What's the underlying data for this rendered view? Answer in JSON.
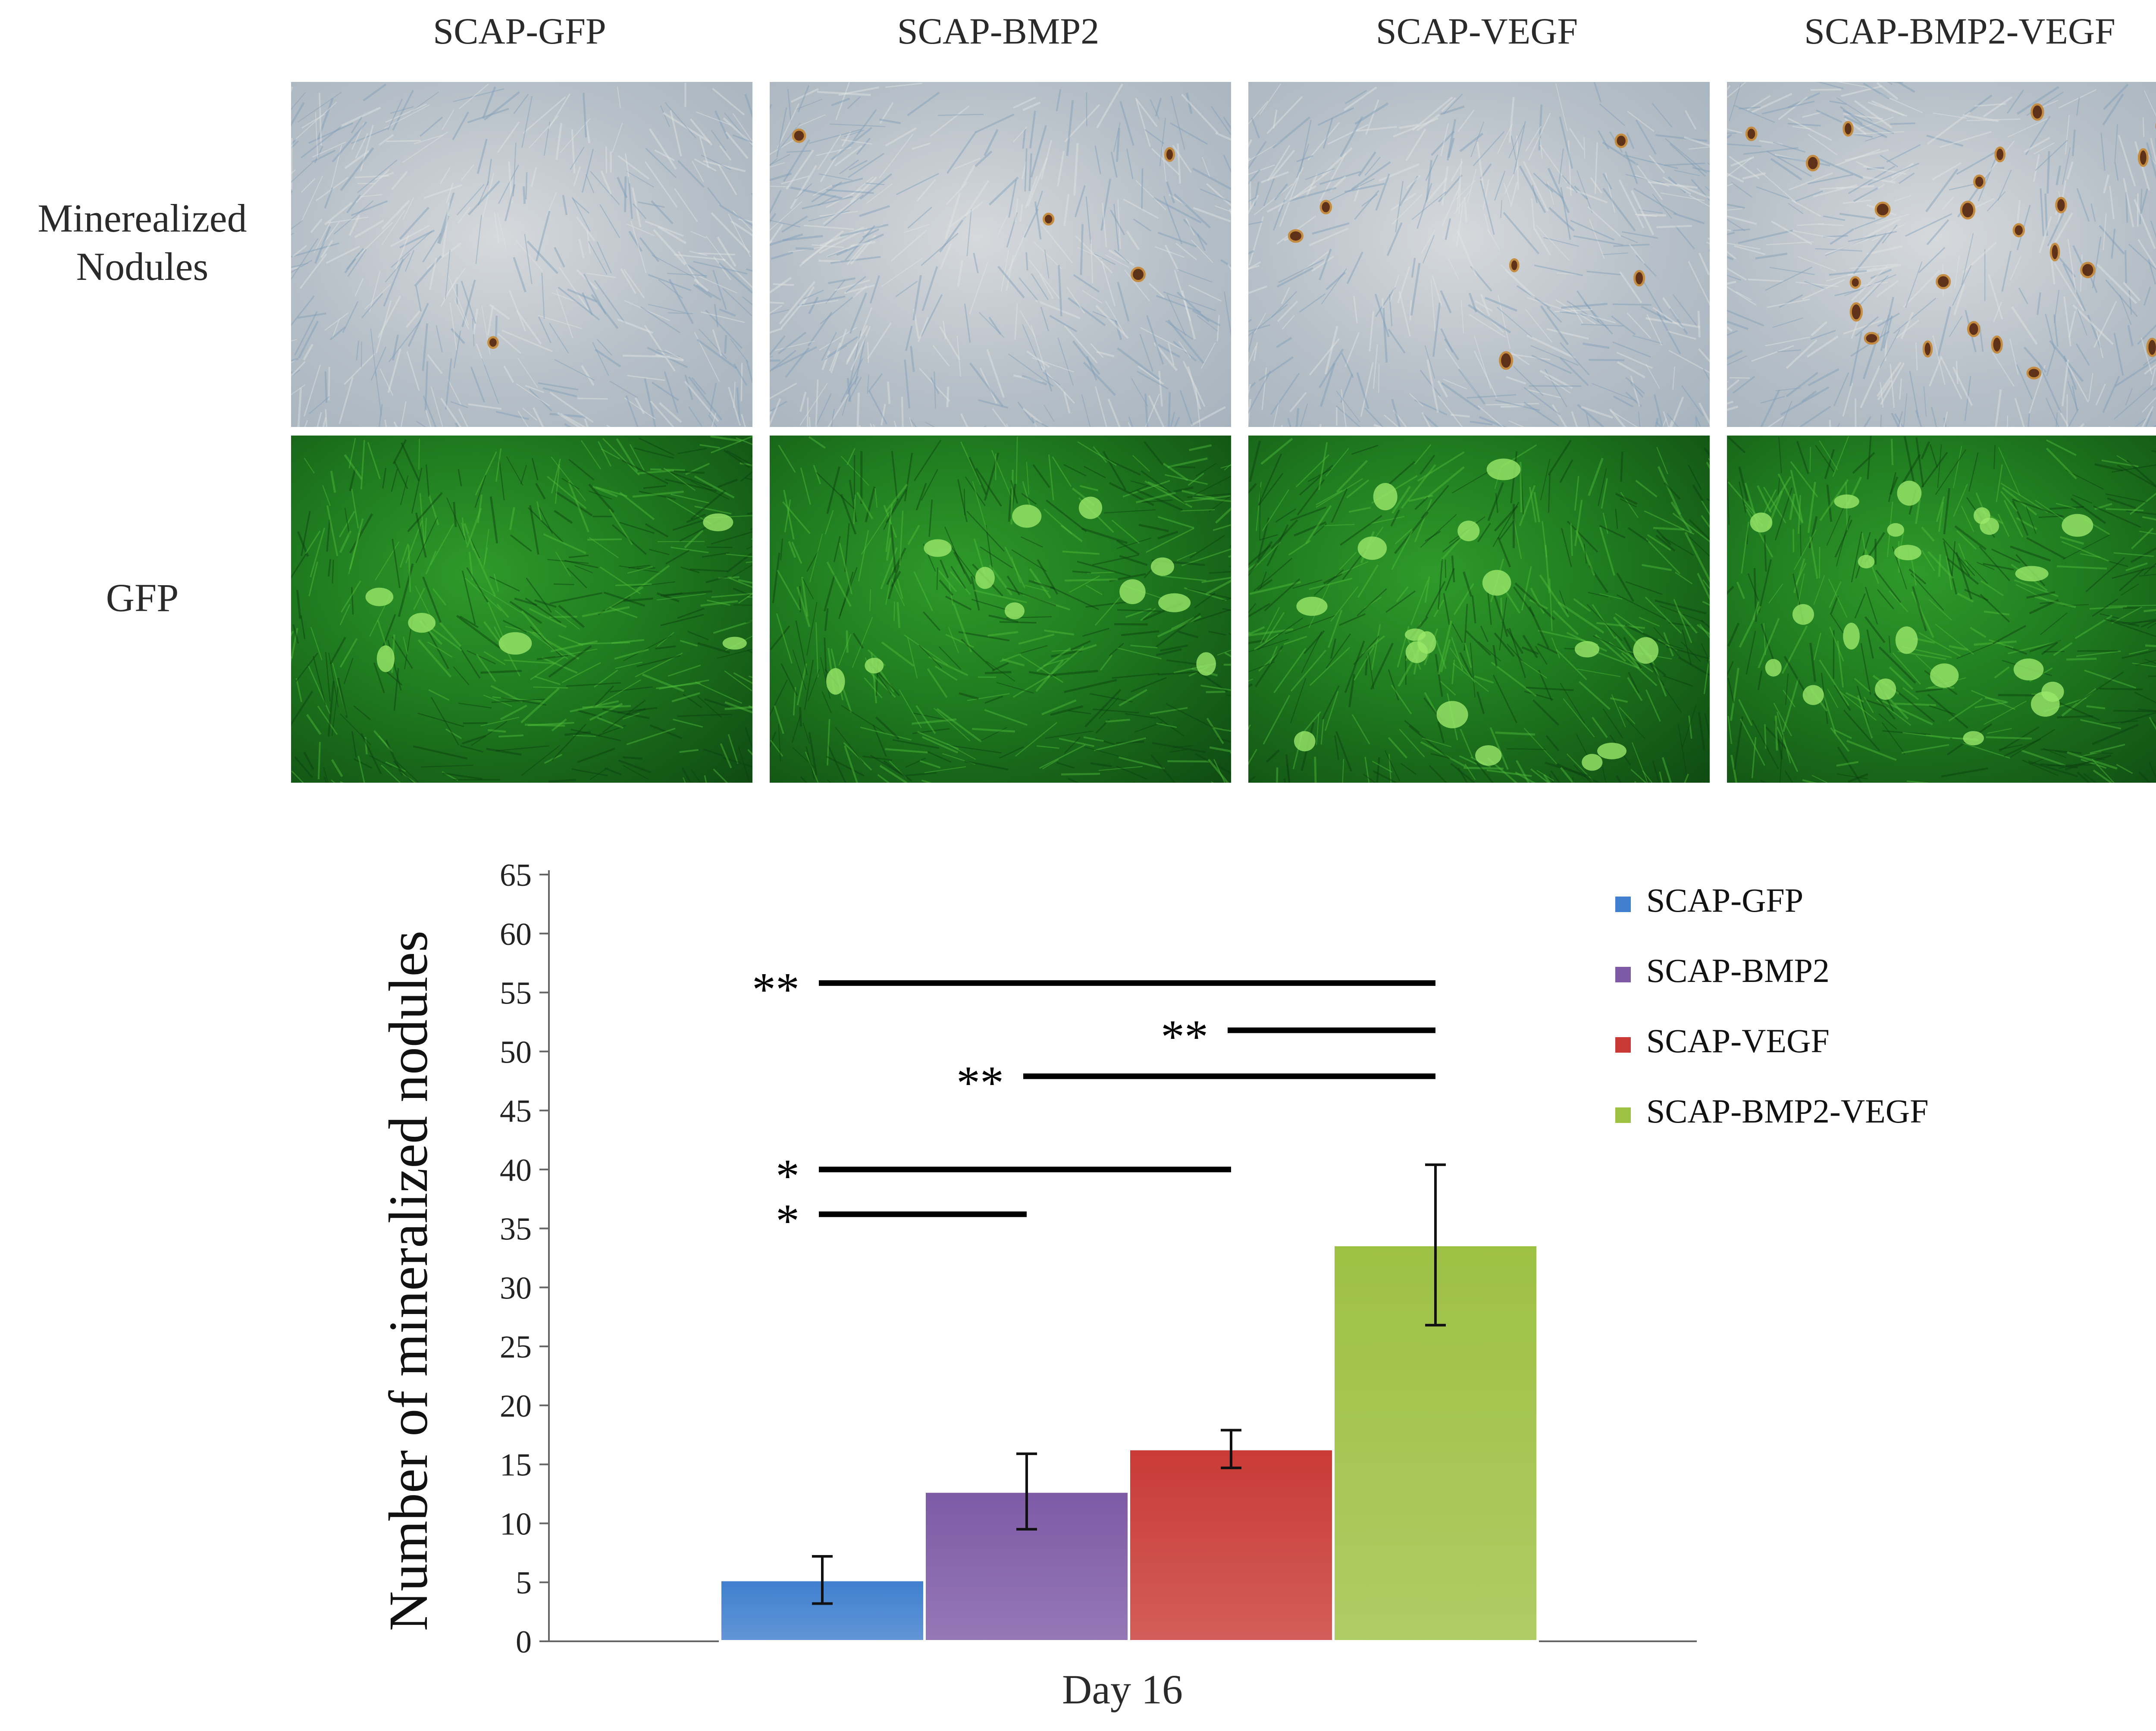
{
  "figure": {
    "columns": [
      "SCAP-GFP",
      "SCAP-BMP2",
      "SCAP-VEGF",
      "SCAP-BMP2-VEGF"
    ],
    "rows": [
      {
        "label_line1": "Minerealized",
        "label_line2": "Nodules",
        "kind": "brightfield micrograph"
      },
      {
        "label_line1": "GFP",
        "label_line2": "",
        "kind": "green fluorescence micrograph"
      }
    ]
  },
  "chart_data": {
    "type": "bar",
    "title": "",
    "xlabel": "Day 16",
    "ylabel": "Number of mineralized nodules",
    "ylim": [
      0,
      65
    ],
    "yticks": [
      0,
      5,
      10,
      15,
      20,
      25,
      30,
      35,
      40,
      45,
      50,
      55,
      60,
      65
    ],
    "grid": false,
    "legend_position": "top-right",
    "categories": [
      "Day 16"
    ],
    "series": [
      {
        "name": "SCAP-GFP",
        "values": [
          5.2
        ],
        "error": [
          2.0
        ],
        "color": "#3f7fce"
      },
      {
        "name": "SCAP-BMP2",
        "values": [
          12.7
        ],
        "error": [
          3.2
        ],
        "color": "#7e5aa6"
      },
      {
        "name": "SCAP-VEGF",
        "values": [
          16.3
        ],
        "error": [
          1.6
        ],
        "color": "#c93a36"
      },
      {
        "name": "SCAP-BMP2-VEGF",
        "values": [
          33.6
        ],
        "error": [
          6.8
        ],
        "color": "#9dc143"
      }
    ],
    "significance": [
      {
        "from": "SCAP-GFP",
        "to": "SCAP-BMP2-VEGF",
        "label": "**",
        "y": 55.8
      },
      {
        "from": "SCAP-VEGF",
        "to": "SCAP-BMP2-VEGF",
        "label": "**",
        "y": 51.8
      },
      {
        "from": "SCAP-BMP2",
        "to": "SCAP-BMP2-VEGF",
        "label": "**",
        "y": 47.9
      },
      {
        "from": "SCAP-GFP",
        "to": "SCAP-VEGF",
        "label": "*",
        "y": 40.0
      },
      {
        "from": "SCAP-GFP",
        "to": "SCAP-BMP2",
        "label": "*",
        "y": 36.2
      }
    ]
  }
}
